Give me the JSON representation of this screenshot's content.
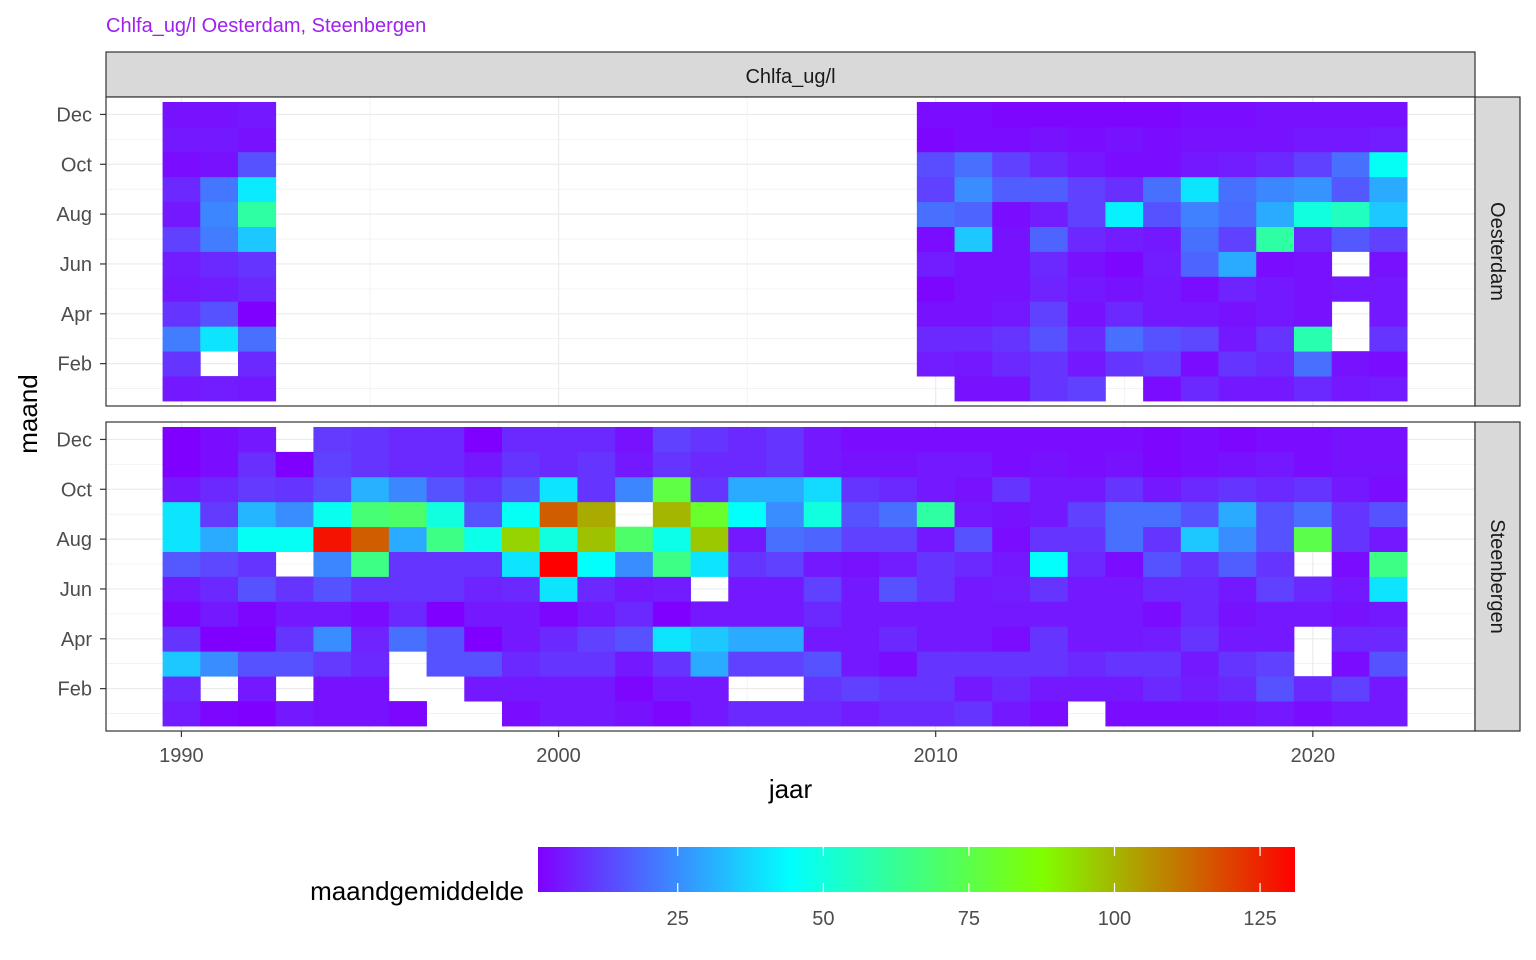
{
  "chart_data": {
    "type": "heatmap",
    "title": "Chlfa_ug/l Oesterdam, Steenbergen",
    "facet_label": "Chlfa_ug/l",
    "xlabel": "jaar",
    "ylabel": "maand",
    "x_ticks": [
      1990,
      2000,
      2010,
      2020
    ],
    "y_tick_labels": [
      "Feb",
      "Apr",
      "Jun",
      "Aug",
      "Oct",
      "Dec"
    ],
    "y_tick_months": [
      2,
      4,
      6,
      8,
      10,
      12
    ],
    "xlim": [
      1988.0,
      2024.3
    ],
    "ylim": [
      0.3,
      12.7
    ],
    "legend": {
      "title": "maandgemiddelde",
      "ticks": [
        25,
        50,
        75,
        100,
        125
      ],
      "min": 1,
      "max": 131,
      "position": "bottom"
    },
    "grid": true,
    "colors": {
      "title": "#A020F0",
      "scale": [
        "#8000FF",
        "#00FFFF",
        "#80FF00",
        "#FF0000"
      ]
    },
    "panels": [
      {
        "name": "Oesterdam",
        "years": [
          1990,
          1991,
          1992,
          2010,
          2011,
          2012,
          2013,
          2014,
          2015,
          2016,
          2017,
          2018,
          2019,
          2020,
          2021,
          2022
        ],
        "values_by_year": [
          [
            5,
            10,
            22,
            10,
            5,
            6,
            12,
            5,
            8,
            3,
            5,
            4
          ],
          [
            6,
            null,
            40,
            15,
            6,
            8,
            22,
            24,
            21,
            4,
            5,
            4
          ],
          [
            5,
            8,
            20,
            1,
            8,
            10,
            35,
            60,
            41,
            15,
            4,
            5
          ],
          [
            null,
            6,
            8,
            4,
            2,
            6,
            3,
            20,
            12,
            14,
            2,
            3
          ],
          [
            4,
            5,
            8,
            4,
            4,
            4,
            35,
            18,
            25,
            20,
            3,
            3
          ],
          [
            4,
            8,
            10,
            5,
            4,
            4,
            4,
            3,
            17,
            12,
            3,
            2
          ],
          [
            10,
            10,
            15,
            12,
            7,
            8,
            18,
            6,
            17,
            8,
            4,
            2
          ],
          [
            12,
            5,
            8,
            4,
            5,
            4,
            8,
            12,
            12,
            5,
            3,
            2
          ],
          [
            null,
            10,
            20,
            8,
            4,
            2,
            6,
            42,
            9,
            3,
            4,
            2
          ],
          [
            3,
            12,
            15,
            5,
            5,
            6,
            5,
            15,
            20,
            3,
            3,
            2
          ],
          [
            8,
            3,
            13,
            5,
            3,
            18,
            20,
            23,
            40,
            5,
            4,
            3
          ],
          [
            5,
            10,
            5,
            4,
            7,
            30,
            12,
            19,
            20,
            6,
            4,
            3
          ],
          [
            5,
            8,
            10,
            5,
            5,
            3,
            60,
            30,
            24,
            8,
            4,
            4
          ],
          [
            8,
            20,
            58,
            4,
            4,
            4,
            8,
            50,
            26,
            12,
            5,
            4
          ],
          [
            5,
            4,
            null,
            null,
            5,
            null,
            16,
            55,
            16,
            20,
            5,
            4
          ],
          [
            6,
            3,
            10,
            5,
            5,
            4,
            12,
            35,
            30,
            46,
            6,
            4
          ]
        ]
      },
      {
        "name": "Steenbergen",
        "years": [
          1990,
          1991,
          1992,
          1993,
          1994,
          1995,
          1996,
          1997,
          1998,
          1999,
          2000,
          2001,
          2002,
          2003,
          2004,
          2005,
          2006,
          2007,
          2008,
          2009,
          2010,
          2011,
          2012,
          2013,
          2014,
          2015,
          2016,
          2017,
          2018,
          2019,
          2020,
          2021,
          2022
        ],
        "values_by_year": [
          [
            6,
            8,
            35,
            10,
            2,
            5,
            16,
            40,
            40,
            5,
            1,
            1
          ],
          [
            2,
            null,
            25,
            1,
            5,
            8,
            13,
            30,
            11,
            8,
            3,
            3
          ],
          [
            1,
            5,
            15,
            1,
            2,
            15,
            10,
            46,
            32,
            11,
            9,
            5
          ],
          [
            5,
            null,
            15,
            10,
            5,
            10,
            null,
            46,
            25,
            10,
            1,
            null
          ],
          [
            4,
            4,
            11,
            25,
            5,
            15,
            24,
            128,
            47,
            14,
            12,
            11
          ],
          [
            4,
            4,
            8,
            7,
            3,
            10,
            65,
            115,
            68,
            31,
            10,
            10
          ],
          [
            2,
            null,
            null,
            20,
            8,
            10,
            10,
            30,
            70,
            24,
            8,
            8
          ],
          [
            null,
            null,
            15,
            15,
            1,
            10,
            10,
            65,
            50,
            15,
            8,
            8
          ],
          [
            null,
            5,
            15,
            1,
            5,
            7,
            10,
            48,
            15,
            10,
            5,
            1
          ],
          [
            3,
            5,
            8,
            5,
            5,
            8,
            40,
            95,
            46,
            15,
            10,
            8
          ],
          [
            5,
            5,
            10,
            8,
            2,
            40,
            131,
            50,
            115,
            40,
            8,
            8
          ],
          [
            5,
            5,
            10,
            12,
            5,
            8,
            45,
            98,
            102,
            10,
            10,
            8
          ],
          [
            4,
            2,
            5,
            15,
            8,
            5,
            25,
            70,
            null,
            24,
            5,
            4
          ],
          [
            2,
            5,
            10,
            40,
            1,
            6,
            65,
            48,
            100,
            76,
            10,
            12
          ],
          [
            5,
            5,
            30,
            35,
            5,
            null,
            40,
            97,
            80,
            10,
            8,
            10
          ],
          [
            8,
            null,
            12,
            30,
            5,
            5,
            10,
            5,
            45,
            30,
            8,
            8
          ],
          [
            8,
            null,
            12,
            30,
            5,
            5,
            12,
            20,
            25,
            30,
            10,
            10
          ],
          [
            8,
            10,
            15,
            5,
            8,
            12,
            5,
            18,
            50,
            38,
            5,
            5
          ],
          [
            6,
            12,
            5,
            5,
            5,
            5,
            4,
            12,
            15,
            10,
            4,
            3
          ],
          [
            8,
            10,
            3,
            8,
            5,
            15,
            6,
            12,
            20,
            8,
            4,
            3
          ],
          [
            8,
            10,
            10,
            5,
            5,
            10,
            10,
            5,
            60,
            5,
            5,
            3
          ],
          [
            10,
            5,
            10,
            5,
            5,
            5,
            8,
            15,
            5,
            4,
            5,
            3
          ],
          [
            5,
            8,
            10,
            3,
            5,
            6,
            5,
            3,
            4,
            10,
            3,
            3
          ],
          [
            3,
            5,
            10,
            10,
            5,
            10,
            45,
            10,
            5,
            5,
            4,
            3
          ],
          [
            null,
            5,
            8,
            5,
            5,
            5,
            8,
            10,
            12,
            5,
            3,
            3
          ],
          [
            3,
            5,
            10,
            5,
            5,
            5,
            3,
            20,
            20,
            10,
            4,
            3
          ],
          [
            3,
            8,
            10,
            6,
            3,
            8,
            15,
            10,
            20,
            5,
            2,
            2
          ],
          [
            3,
            6,
            5,
            10,
            8,
            8,
            10,
            35,
            15,
            8,
            3,
            3
          ],
          [
            4,
            8,
            10,
            5,
            4,
            5,
            17,
            25,
            30,
            10,
            4,
            2
          ],
          [
            5,
            15,
            12,
            5,
            5,
            12,
            10,
            15,
            15,
            8,
            5,
            3
          ],
          [
            3,
            8,
            null,
            null,
            5,
            8,
            null,
            75,
            20,
            10,
            3,
            3
          ],
          [
            5,
            12,
            3,
            8,
            4,
            5,
            3,
            10,
            10,
            5,
            4,
            4
          ],
          [
            5,
            5,
            15,
            8,
            5,
            40,
            65,
            5,
            15,
            3,
            4,
            4
          ]
        ]
      }
    ]
  }
}
